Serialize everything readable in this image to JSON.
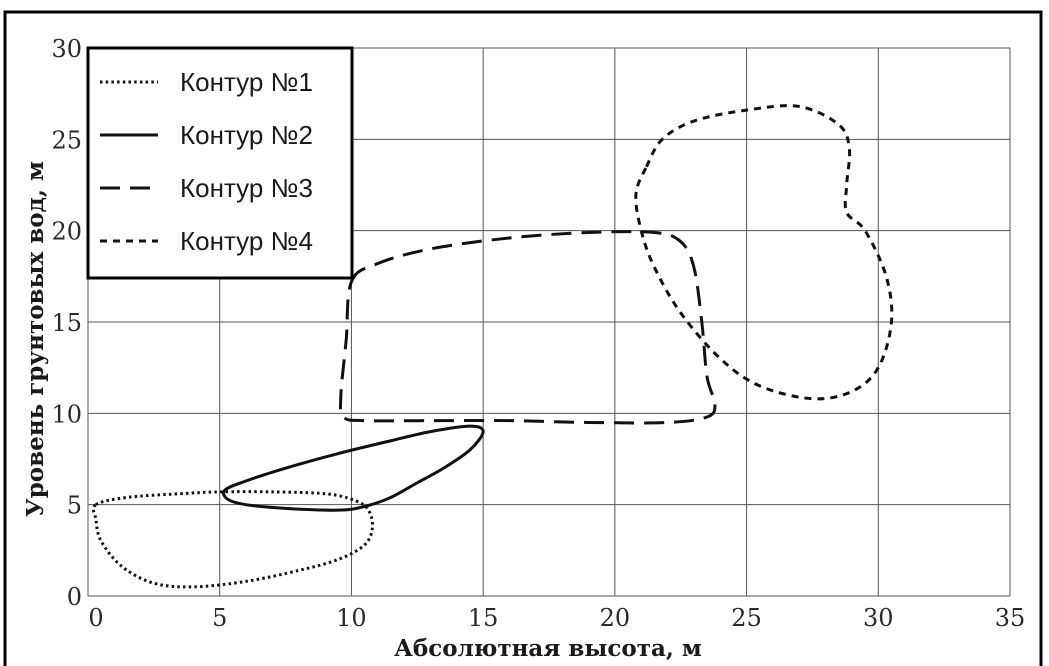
{
  "chart_data": {
    "type": "line",
    "xlabel": "Абсолютная высота, м",
    "ylabel": "Уровень грунтовых вод, м",
    "xlim": [
      0,
      35
    ],
    "ylim": [
      0,
      30
    ],
    "xticks": [
      0,
      5,
      10,
      15,
      20,
      25,
      30,
      35
    ],
    "yticks": [
      0,
      5,
      10,
      15,
      20,
      25,
      30
    ],
    "grid": true,
    "legend_position": "top-left",
    "series": [
      {
        "name": "Контур №1",
        "style": "dotted",
        "closed": true,
        "points": [
          [
            0.3,
            5.0
          ],
          [
            1.5,
            5.4
          ],
          [
            3.5,
            5.6
          ],
          [
            5.0,
            5.7
          ],
          [
            7.0,
            5.7
          ],
          [
            9.0,
            5.6
          ],
          [
            10.0,
            5.3
          ],
          [
            10.6,
            4.8
          ],
          [
            10.8,
            3.8
          ],
          [
            10.5,
            2.8
          ],
          [
            9.5,
            2.0
          ],
          [
            8.0,
            1.4
          ],
          [
            6.0,
            0.8
          ],
          [
            4.0,
            0.5
          ],
          [
            2.5,
            0.7
          ],
          [
            1.3,
            1.6
          ],
          [
            0.5,
            3.0
          ],
          [
            0.3,
            4.2
          ]
        ]
      },
      {
        "name": "Контур №2",
        "style": "solid",
        "closed": true,
        "points": [
          [
            5.2,
            5.8
          ],
          [
            6.0,
            6.3
          ],
          [
            7.5,
            7.0
          ],
          [
            9.5,
            7.8
          ],
          [
            11.5,
            8.5
          ],
          [
            13.0,
            9.0
          ],
          [
            14.5,
            9.3
          ],
          [
            15.0,
            9.0
          ],
          [
            14.5,
            8.0
          ],
          [
            13.5,
            7.0
          ],
          [
            12.5,
            6.2
          ],
          [
            11.5,
            5.4
          ],
          [
            10.5,
            4.9
          ],
          [
            9.5,
            4.7
          ],
          [
            7.5,
            4.8
          ],
          [
            6.0,
            5.0
          ],
          [
            5.3,
            5.3
          ]
        ]
      },
      {
        "name": "Контур №3",
        "style": "dashed",
        "closed": true,
        "points": [
          [
            10.0,
            17.2
          ],
          [
            11.0,
            18.2
          ],
          [
            13.0,
            19.0
          ],
          [
            16.0,
            19.6
          ],
          [
            19.0,
            19.9
          ],
          [
            21.5,
            19.9
          ],
          [
            22.5,
            19.4
          ],
          [
            23.0,
            18.0
          ],
          [
            23.3,
            15.0
          ],
          [
            23.5,
            12.0
          ],
          [
            23.8,
            10.5
          ],
          [
            23.5,
            9.8
          ],
          [
            22.0,
            9.5
          ],
          [
            19.0,
            9.5
          ],
          [
            16.0,
            9.6
          ],
          [
            13.0,
            9.6
          ],
          [
            10.5,
            9.6
          ],
          [
            9.7,
            9.8
          ],
          [
            9.6,
            11.0
          ],
          [
            9.8,
            14.0
          ]
        ]
      },
      {
        "name": "Контур №4",
        "style": "short-dashed",
        "closed": true,
        "points": [
          [
            21.2,
            23.5
          ],
          [
            21.8,
            25.0
          ],
          [
            23.0,
            26.0
          ],
          [
            25.0,
            26.6
          ],
          [
            27.0,
            26.8
          ],
          [
            28.5,
            25.8
          ],
          [
            28.9,
            24.5
          ],
          [
            28.8,
            22.5
          ],
          [
            28.8,
            21.0
          ],
          [
            29.5,
            20.0
          ],
          [
            30.3,
            17.5
          ],
          [
            30.5,
            15.0
          ],
          [
            30.0,
            12.5
          ],
          [
            29.0,
            11.2
          ],
          [
            27.5,
            10.8
          ],
          [
            25.5,
            11.5
          ],
          [
            24.0,
            13.0
          ],
          [
            22.5,
            15.5
          ],
          [
            21.5,
            18.0
          ],
          [
            21.0,
            20.0
          ],
          [
            20.8,
            22.0
          ]
        ]
      }
    ]
  }
}
